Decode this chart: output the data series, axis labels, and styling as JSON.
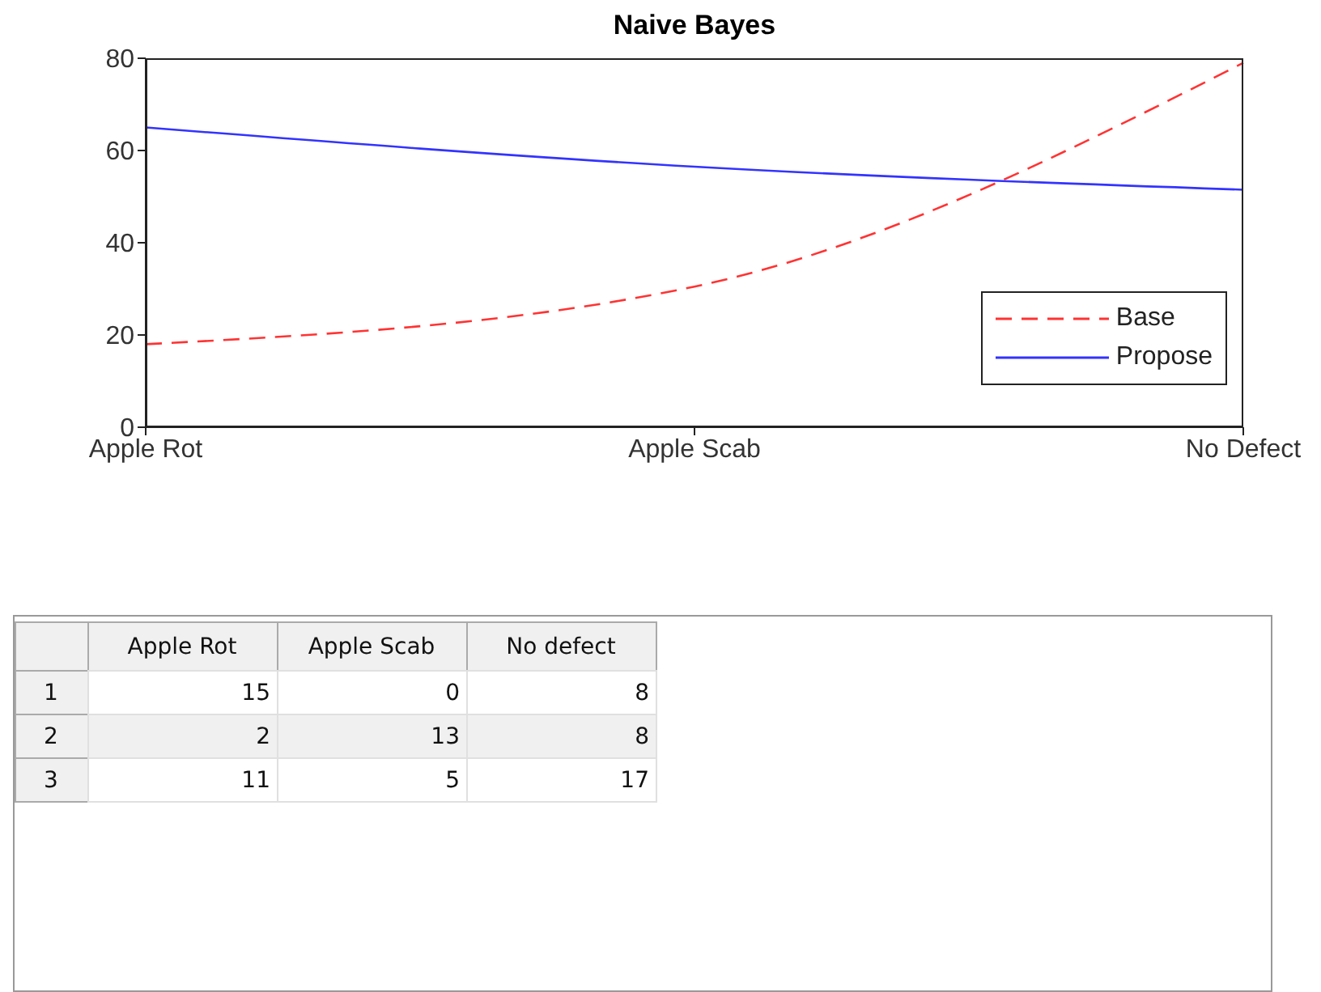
{
  "chart_data": [
    {
      "type": "line",
      "title": "Naive Bayes",
      "categories": [
        "Apple Rot",
        "Apple Scab",
        "No Defect"
      ],
      "series": [
        {
          "name": "Base",
          "color": "#ff3333",
          "values": [
            18,
            30.5,
            79
          ],
          "line_style": "dashed"
        },
        {
          "name": "Propose",
          "color": "#3333ff",
          "values": [
            65,
            56.5,
            51.5
          ],
          "line_style": "solid"
        }
      ],
      "ylim": [
        0,
        80
      ],
      "yticks": [
        0,
        20,
        40,
        60,
        80
      ],
      "grid": false,
      "legend": "bottom right",
      "marker": "none"
    },
    {
      "type": "heatmap",
      "data_labels": true,
      "categories": [
        "Apple Rot",
        "Apple Scab",
        "No defect"
      ],
      "y_categories": [
        "1",
        "2",
        "3"
      ],
      "cells": [
        [
          15,
          0,
          8
        ],
        [
          2,
          13,
          8
        ],
        [
          11,
          5,
          17
        ]
      ]
    }
  ]
}
